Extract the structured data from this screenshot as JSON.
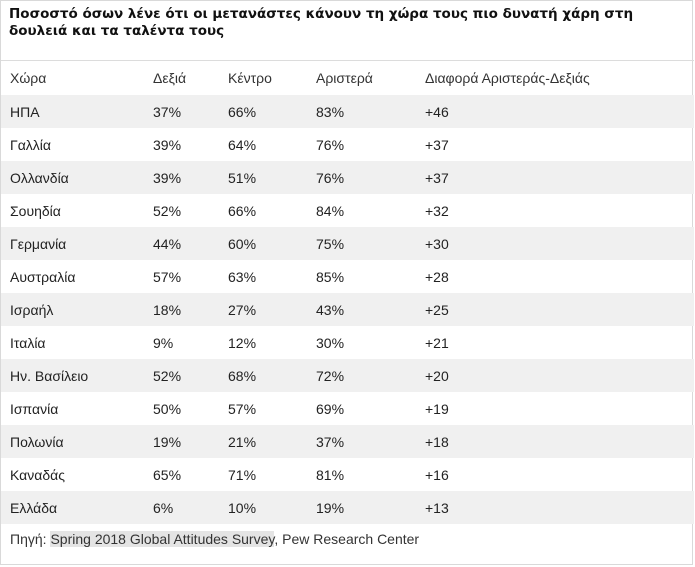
{
  "chart_data": {
    "type": "table",
    "title": "Ποσοστό όσων λένε ότι οι μετανάστες κάνουν τη χώρα τους πιο δυνατή χάρη στη δουλειά και τα ταλέντα τους",
    "columns": [
      "Χώρα",
      "Δεξιά",
      "Κέντρο",
      "Αριστερά",
      "Διαφορά Αριστεράς-Δεξιάς"
    ],
    "rows": [
      [
        "ΗΠΑ",
        "37%",
        "66%",
        "83%",
        "+46"
      ],
      [
        "Γαλλία",
        "39%",
        "64%",
        "76%",
        "+37"
      ],
      [
        "Ολλανδία",
        "39%",
        "51%",
        "76%",
        "+37"
      ],
      [
        "Σουηδία",
        "52%",
        "66%",
        "84%",
        "+32"
      ],
      [
        "Γερμανία",
        "44%",
        "60%",
        "75%",
        "+30"
      ],
      [
        "Αυστραλία",
        "57%",
        "63%",
        "85%",
        "+28"
      ],
      [
        "Ισραήλ",
        "18%",
        "27%",
        "43%",
        "+25"
      ],
      [
        "Ιταλία",
        "9%",
        "12%",
        "30%",
        "+21"
      ],
      [
        "Ην. Βασίλειο",
        "52%",
        "68%",
        "72%",
        "+20"
      ],
      [
        "Ισπανία",
        "50%",
        "57%",
        "69%",
        "+19"
      ],
      [
        "Πολωνία",
        "19%",
        "21%",
        "37%",
        "+18"
      ],
      [
        "Καναδάς",
        "65%",
        "71%",
        "81%",
        "+16"
      ],
      [
        "Ελλάδα",
        "6%",
        "10%",
        "19%",
        "+13"
      ]
    ],
    "source_prefix": "Πηγή: ",
    "source_link": "Spring 2018 Global Attitudes Survey",
    "source_suffix": ", Pew Research Center"
  },
  "colors": {
    "stripe": "#f0f0f0",
    "text": "#222222",
    "link_highlight": "#e4e4e4"
  }
}
